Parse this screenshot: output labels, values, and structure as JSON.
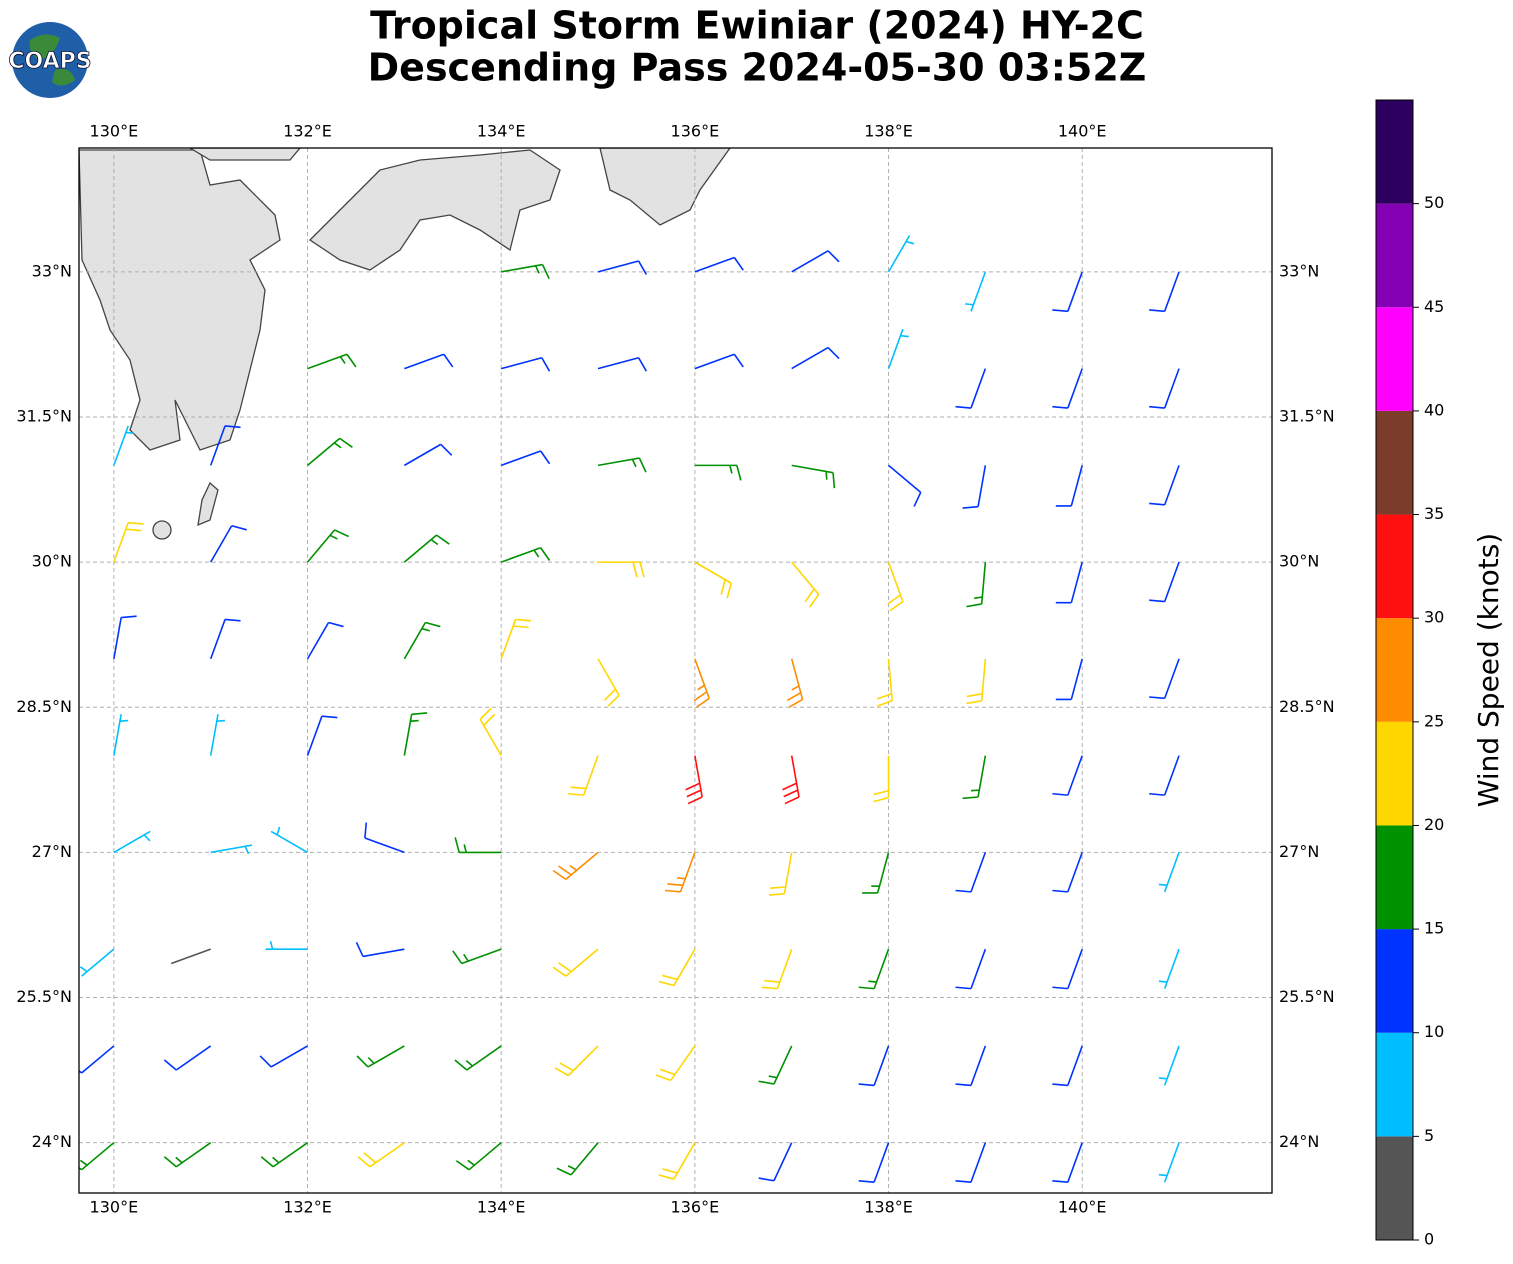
{
  "map": {
    "title_lines": [
      "Tropical Storm Ewiniar (2024) HY-2C",
      "Descending Pass 2024-05-30 03:52Z"
    ],
    "logo": "COAPS",
    "xlim": [
      129.64,
      141.96
    ],
    "ylim": [
      23.48,
      34.28
    ],
    "grid": true,
    "xticks": [
      {
        "value": 130,
        "label": "130°E"
      },
      {
        "value": 132,
        "label": "132°E"
      },
      {
        "value": 134,
        "label": "134°E"
      },
      {
        "value": 136,
        "label": "136°E"
      },
      {
        "value": 138,
        "label": "138°E"
      },
      {
        "value": 140,
        "label": "140°E"
      }
    ],
    "yticks": [
      {
        "value": 24,
        "label": "24°N"
      },
      {
        "value": 25.5,
        "label": "25.5°N"
      },
      {
        "value": 27,
        "label": "27°N"
      },
      {
        "value": 28.5,
        "label": "28.5°N"
      },
      {
        "value": 30,
        "label": "30°N"
      },
      {
        "value": 31.5,
        "label": "31.5°N"
      },
      {
        "value": 33,
        "label": "33°N"
      }
    ],
    "barbs": {
      "lons": [
        130,
        131,
        132,
        133,
        134,
        135,
        136,
        137,
        138,
        139,
        140,
        141
      ],
      "lats": [
        33,
        32,
        31,
        30,
        29,
        28,
        27,
        26,
        25,
        24
      ],
      "speed": [
        [
          null,
          null,
          null,
          null,
          15,
          12,
          12,
          10,
          8,
          8,
          10,
          10
        ],
        [
          null,
          null,
          15,
          12,
          12,
          12,
          12,
          10,
          8,
          10,
          12,
          12
        ],
        [
          8,
          12,
          16,
          14,
          14,
          15,
          17,
          17,
          14,
          12,
          12,
          12
        ],
        [
          20,
          14,
          15,
          17,
          18,
          22,
          22,
          20,
          20,
          16,
          12,
          10
        ],
        [
          14,
          12,
          14,
          17,
          22,
          22,
          26,
          27,
          24,
          20,
          12,
          10
        ],
        [
          8,
          8,
          10,
          15,
          22,
          22,
          31,
          30,
          22,
          17,
          12,
          10
        ],
        [
          7,
          5,
          8,
          14,
          18,
          26,
          27,
          23,
          18,
          12,
          10,
          8
        ],
        [
          7,
          3,
          8,
          12,
          16,
          20,
          24,
          20,
          16,
          12,
          10,
          8
        ],
        [
          10,
          12,
          14,
          15,
          17,
          20,
          20,
          16,
          12,
          12,
          10,
          8
        ],
        [
          18,
          17,
          16,
          20,
          17,
          17,
          22,
          14,
          12,
          12,
          10,
          8
        ]
      ],
      "direction": [
        [
          null,
          null,
          null,
          null,
          80,
          75,
          70,
          60,
          30,
          200,
          200,
          200
        ],
        [
          null,
          null,
          70,
          70,
          75,
          75,
          70,
          60,
          20,
          200,
          200,
          200
        ],
        [
          20,
          20,
          50,
          60,
          70,
          80,
          90,
          100,
          130,
          190,
          195,
          200
        ],
        [
          20,
          30,
          40,
          50,
          70,
          90,
          120,
          140,
          160,
          185,
          195,
          200
        ],
        [
          10,
          20,
          30,
          30,
          20,
          150,
          160,
          165,
          175,
          185,
          195,
          200
        ],
        [
          10,
          10,
          20,
          10,
          330,
          200,
          170,
          170,
          180,
          190,
          200,
          200
        ],
        [
          60,
          80,
          300,
          290,
          270,
          230,
          200,
          190,
          195,
          200,
          200,
          200
        ],
        [
          230,
          250,
          270,
          260,
          250,
          230,
          210,
          200,
          200,
          200,
          200,
          200
        ],
        [
          230,
          235,
          240,
          240,
          235,
          225,
          215,
          205,
          200,
          200,
          200,
          200
        ],
        [
          230,
          235,
          235,
          235,
          230,
          220,
          210,
          205,
          200,
          200,
          200,
          200
        ]
      ]
    },
    "colorbar": {
      "label": "Wind Speed (knots)",
      "lim": [
        0,
        55
      ],
      "ticks": [
        0,
        5,
        10,
        15,
        20,
        25,
        30,
        35,
        40,
        45,
        50
      ],
      "colors": [
        "#555555",
        "#00bfff",
        "#0033ff",
        "#009100",
        "#ffd700",
        "#ff8c00",
        "#ff1010",
        "#7b3c2a",
        "#ff00ff",
        "#8400b4",
        "#2d005f"
      ]
    }
  }
}
